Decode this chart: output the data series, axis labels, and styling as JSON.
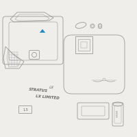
{
  "bg": "#f0eeeb",
  "lc": "#999999",
  "lc2": "#777777",
  "hc": "#2288bb",
  "tc": "#666666",
  "lw": 0.6,
  "badge_stratus": "STRATUS",
  "badge_lx": "LX",
  "badge_lx_limited": "LX LIMITED",
  "label_15": "1.5"
}
